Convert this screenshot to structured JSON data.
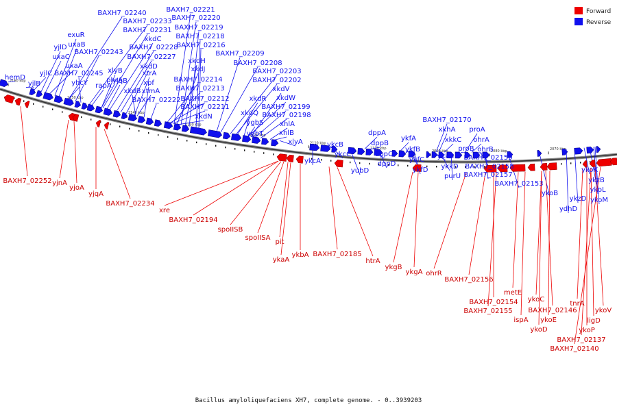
{
  "caption": "Bacillus amyloliquefaciens XH7, complete genome. - 0..3939203",
  "legend": [
    {
      "label": "Forward",
      "color": "#ee0000"
    },
    {
      "label": "Reverse",
      "color": "#1010ee"
    }
  ],
  "colors": {
    "backbone": "#555555",
    "forward": "#ee0000",
    "reverse": "#1010ee"
  },
  "ticks": [
    "2160 kbp",
    "2150 kbp",
    "2140 kbp",
    "2130 kbp",
    "2120 kbp",
    "2110 kbp",
    "2100 kbp",
    "2090 kbp",
    "2080 kbp",
    "2070 kbp"
  ],
  "reverse_labels": [
    "BAXH7_02240",
    "BAXH7_02221",
    "BAXH7_02220",
    "BAXH7_02233",
    "BAXH7_02219",
    "BAXH7_02231",
    "exuR",
    "BAXH7_02218",
    "uxaB",
    "xkdC",
    "BAXH7_02216",
    "yjlD",
    "BAXH7_02243",
    "BAXH7_02228",
    "BAXH7_02209",
    "uxaC",
    "BAXH7_02227",
    "xkdH",
    "BAXH7_02208",
    "phrA",
    "xkdD",
    "uxaA",
    "xkdJ",
    "yjlC",
    "BAXH7_02245",
    "xlyB",
    "xtrA",
    "BAXH7_02203",
    "hemD",
    "BAXH7_02214",
    "BAXH7_02202",
    "yjlB",
    "yhcY",
    "rapA",
    "yjqB",
    "xpf",
    "BAXH7_02213",
    "xkdV",
    "xkdB",
    "xtmA",
    "xkdR",
    "BAXH7_02212",
    "xkdW",
    "BAXH7_02222",
    "BAXH7_02211",
    "BAXH7_02199",
    "xkdQ",
    "BAXH7_02198",
    "xkdN",
    "ygbS",
    "xhlA",
    "xhlB",
    "ygbT",
    "xlyA",
    "BAXH7_02170",
    "xkhA",
    "dppA",
    "proA",
    "ykfA",
    "xkkC",
    "dppB",
    "ohrA",
    "ykcB",
    "ykfB",
    "proB",
    "ohrB",
    "ykcC",
    "dppC",
    "ykcA",
    "ykkB",
    "ykfC",
    "BAXH7_02159",
    "dppD",
    "ykkD",
    "yubD",
    "ykfD",
    "BAXH7_02158",
    "purU",
    "BAXH7_02157",
    "BAXH7_02153",
    "ykoK",
    "ykzB",
    "ykoB",
    "ykzD",
    "ykoL",
    "ydhD",
    "ykoM"
  ],
  "forward_labels": [
    "BAXH7_02252",
    "yjnA",
    "yjoA",
    "yjqA",
    "BAXH7_02234",
    "xre",
    "BAXH7_02194",
    "spoIISB",
    "spoIISA",
    "pit",
    "ykaA",
    "ykbA",
    "BAXH7_02185",
    "htrA",
    "ykgB",
    "ykgA",
    "ohrR",
    "BAXH7_02156",
    "metE",
    "BAXH7_02154",
    "BAXH7_02155",
    "ykoC",
    "BAXH7_02146",
    "ispA",
    "ykoE",
    "ykoD",
    "tnrA",
    "ykoV",
    "ligD",
    "ykoP",
    "BAXH7_02137",
    "BAXH7_02140"
  ]
}
